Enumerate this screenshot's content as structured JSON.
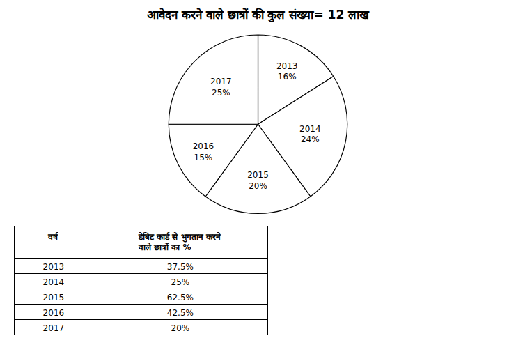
{
  "chart_data": [
    {
      "type": "pie",
      "title": "आवेदन करने वाले छात्रों की कुल संख्या= 12 लाख",
      "categories": [
        "2013",
        "2014",
        "2015",
        "2016",
        "2017"
      ],
      "values": [
        16,
        24,
        20,
        15,
        25
      ],
      "value_labels": [
        "16%",
        "24%",
        "20%",
        "15%",
        "25%"
      ],
      "colors": [
        "white",
        "white",
        "white",
        "white",
        "white"
      ]
    },
    {
      "type": "table",
      "columns": [
        "वर्ष",
        "डेबिट कार्ड से भुगतान करने\nवाले छात्रों का %"
      ],
      "rows": [
        [
          "2013",
          "37.5%"
        ],
        [
          "2014",
          "25%"
        ],
        [
          "2015",
          "62.5%"
        ],
        [
          "2016",
          "42.5%"
        ],
        [
          "2017",
          "20%"
        ]
      ]
    }
  ]
}
